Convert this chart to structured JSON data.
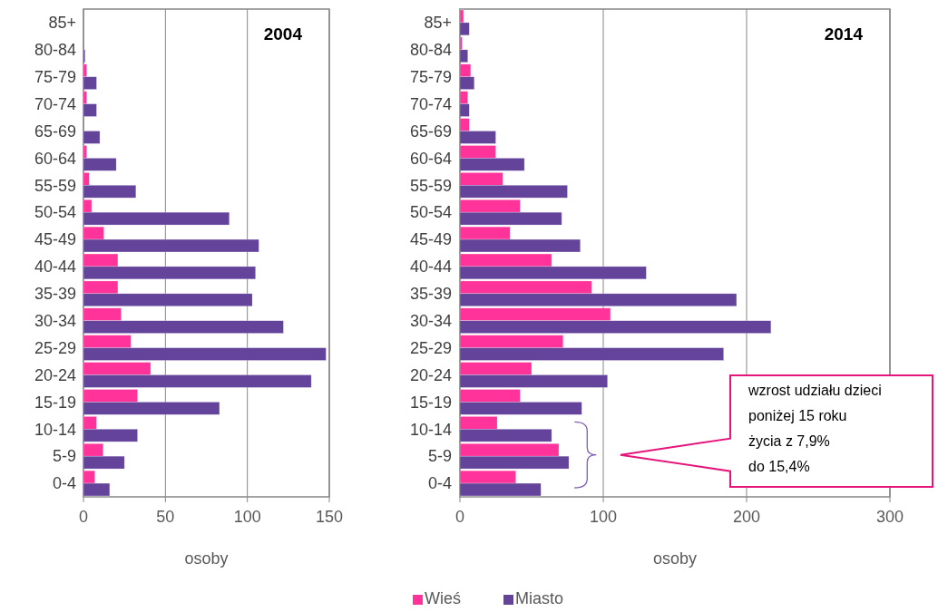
{
  "chart_data": [
    {
      "type": "bar",
      "orientation": "horizontal",
      "title": "2004",
      "xlabel": "osoby",
      "categories": [
        "85+",
        "80-84",
        "75-79",
        "70-74",
        "65-69",
        "60-64",
        "55-59",
        "50-54",
        "45-49",
        "40-44",
        "35-39",
        "30-34",
        "25-29",
        "20-24",
        "15-19",
        "10-14",
        "5-9",
        "0-4"
      ],
      "series": [
        {
          "name": "Wieś",
          "color": "#ff3399",
          "values": [
            0,
            0,
            2,
            2,
            0,
            2,
            3.5,
            5,
            12.5,
            21,
            21,
            23,
            29,
            41,
            33,
            8,
            12,
            7
          ]
        },
        {
          "name": "Miasto",
          "color": "#64439b",
          "values": [
            0,
            1,
            8,
            8,
            10,
            20,
            32,
            89,
            107,
            105,
            103,
            122,
            148,
            139,
            83,
            33,
            25,
            16
          ]
        }
      ],
      "xlim": [
        0,
        150
      ],
      "xticks": [
        0,
        50,
        100,
        150
      ],
      "grid": "x",
      "legend": "bottom"
    },
    {
      "type": "bar",
      "orientation": "horizontal",
      "title": "2014",
      "xlabel": "osoby",
      "categories": [
        "85+",
        "80-84",
        "75-79",
        "70-74",
        "65-69",
        "60-64",
        "55-59",
        "50-54",
        "45-49",
        "40-44",
        "35-39",
        "30-34",
        "25-29",
        "20-24",
        "15-19",
        "10-14",
        "5-9",
        "0-4"
      ],
      "series": [
        {
          "color": "#ff3399",
          "values": [
            2.5,
            1.5,
            7.5,
            5.5,
            6.5,
            25,
            30,
            42,
            35,
            64,
            92,
            105,
            72,
            50,
            42,
            26,
            69,
            39
          ]
        },
        {
          "color": "#64439b",
          "values": [
            6.5,
            5.5,
            10,
            6.5,
            25,
            45,
            75,
            71,
            84,
            130,
            193,
            217,
            184,
            103,
            85,
            64,
            76,
            56.5
          ]
        }
      ],
      "xlim": [
        0,
        300
      ],
      "xticks": [
        0,
        100,
        200,
        300
      ],
      "grid": "x",
      "annotations": [
        "wzrost udziału dzieci\nponiżej 15 roku\nżycia z 7,9%\ndo 15,4%"
      ]
    }
  ]
}
